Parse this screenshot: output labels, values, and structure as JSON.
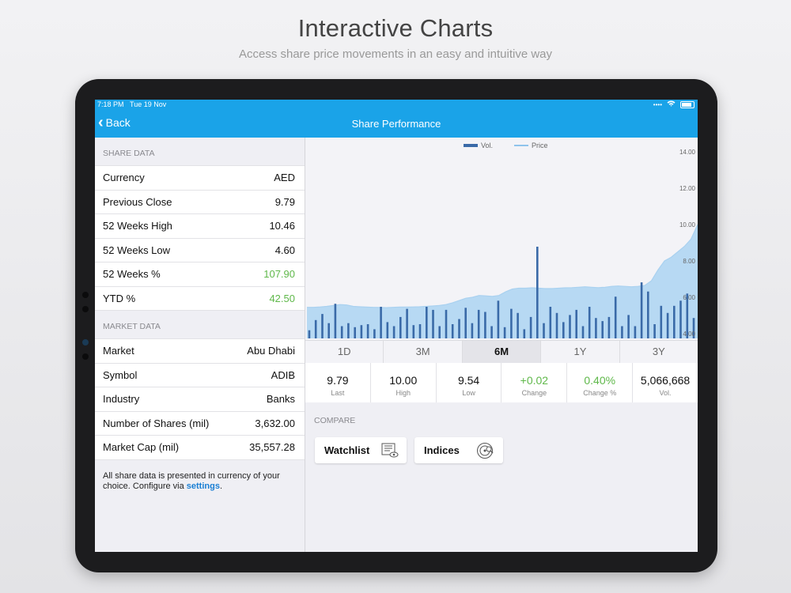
{
  "hero": {
    "title": "Interactive Charts",
    "subtitle": "Access share price movements in an easy and intuitive way"
  },
  "status_bar": {
    "time": "7:18 PM",
    "date": "Tue 19 Nov"
  },
  "nav": {
    "back_label": "Back",
    "title": "Share Performance"
  },
  "share_data": {
    "header": "SHARE DATA",
    "rows": [
      {
        "label": "Currency",
        "value": "AED"
      },
      {
        "label": "Previous Close",
        "value": "9.79"
      },
      {
        "label": "52 Weeks High",
        "value": "10.46"
      },
      {
        "label": "52 Weeks Low",
        "value": "4.60"
      },
      {
        "label": "52 Weeks %",
        "value": "107.90"
      },
      {
        "label": "YTD %",
        "value": "42.50"
      }
    ]
  },
  "market_data": {
    "header": "MARKET DATA",
    "rows": [
      {
        "label": "Market",
        "value": "Abu Dhabi"
      },
      {
        "label": "Symbol",
        "value": "ADIB"
      },
      {
        "label": "Industry",
        "value": "Banks"
      },
      {
        "label": "Number of Shares (mil)",
        "value": "3,632.00"
      },
      {
        "label": "Market Cap (mil)",
        "value": "35,557.28"
      }
    ]
  },
  "note": {
    "text": "All share data is presented in currency of your choice. Configure via ",
    "link": "settings",
    "end": "."
  },
  "colors": {
    "accent": "#1aa3e8",
    "positive": "#5fb84a",
    "volume": "#3a6aa8",
    "price_fill": "#b7d9f3"
  },
  "chart_data": {
    "type": "area",
    "legend": [
      "Vol.",
      "Price"
    ],
    "legend_position": "top-center",
    "y_ticks": [
      "14.00",
      "12.00",
      "10.00",
      "8.00",
      "6.00",
      "4.00"
    ],
    "ylim": [
      4,
      14
    ],
    "price": [
      5.45,
      5.45,
      5.47,
      5.5,
      5.55,
      5.6,
      5.58,
      5.5,
      5.48,
      5.46,
      5.45,
      5.44,
      5.43,
      5.45,
      5.46,
      5.46,
      5.47,
      5.48,
      5.5,
      5.52,
      5.55,
      5.6,
      5.7,
      5.82,
      5.95,
      6.0,
      6.1,
      6.08,
      6.05,
      6.1,
      6.3,
      6.45,
      6.5,
      6.5,
      6.52,
      6.5,
      6.48,
      6.48,
      6.5,
      6.52,
      6.53,
      6.55,
      6.58,
      6.55,
      6.53,
      6.55,
      6.6,
      6.62,
      6.6,
      6.58,
      6.6,
      6.65,
      6.9,
      7.5,
      8.0,
      8.2,
      8.5,
      8.8,
      9.2,
      10.0
    ],
    "volume": [
      0.8,
      1.8,
      2.4,
      1.5,
      3.4,
      1.2,
      1.5,
      1.1,
      1.3,
      1.4,
      0.9,
      3.1,
      1.6,
      1.2,
      2.1,
      2.9,
      1.3,
      1.4,
      3.1,
      2.8,
      1.2,
      2.8,
      1.4,
      1.9,
      3.0,
      1.5,
      2.8,
      2.6,
      1.2,
      3.7,
      1.1,
      2.9,
      2.5,
      0.9,
      2.1,
      9.0,
      1.5,
      3.1,
      2.5,
      1.6,
      2.3,
      2.8,
      1.2,
      3.1,
      2.0,
      1.7,
      2.1,
      4.1,
      1.2,
      2.3,
      1.2,
      5.5,
      4.6,
      1.4,
      3.2,
      2.5,
      3.2,
      3.7,
      4.4,
      2.0
    ],
    "volume_unit": "relative"
  },
  "range_tabs": [
    {
      "label": "1D",
      "active": false
    },
    {
      "label": "3M",
      "active": false
    },
    {
      "label": "6M",
      "active": true
    },
    {
      "label": "1Y",
      "active": false
    },
    {
      "label": "3Y",
      "active": false
    }
  ],
  "stats": [
    {
      "value": "9.79",
      "label": "Last",
      "positive": false
    },
    {
      "value": "10.00",
      "label": "High",
      "positive": false
    },
    {
      "value": "9.54",
      "label": "Low",
      "positive": false
    },
    {
      "value": "+0.02",
      "label": "Change",
      "positive": true
    },
    {
      "value": "0.40%",
      "label": "Change %",
      "positive": true
    },
    {
      "value": "5,066,668",
      "label": "Vol.",
      "positive": false
    }
  ],
  "compare": {
    "header": "COMPARE",
    "watchlist_label": "Watchlist",
    "indices_label": "Indices",
    "watchlist_icon": "watchlist-eye-icon",
    "indices_icon": "indices-disc-icon"
  }
}
